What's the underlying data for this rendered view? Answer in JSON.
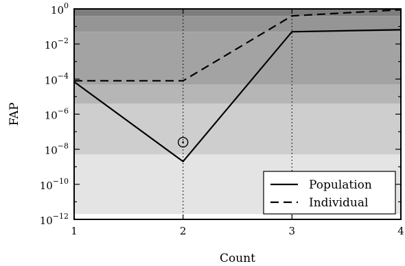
{
  "chart_data": {
    "type": "line",
    "xlabel": "Count",
    "ylabel": "FAP",
    "xlim": [
      1,
      4
    ],
    "ylim_log10": [
      -12,
      0
    ],
    "y_scale": "log",
    "x_ticks": [
      {
        "value": 1,
        "label": "1"
      },
      {
        "value": 2,
        "label": "2"
      },
      {
        "value": 3,
        "label": "3"
      },
      {
        "value": 4,
        "label": "4"
      }
    ],
    "y_ticks": [
      {
        "exp": 0,
        "base": "10",
        "sup": "0"
      },
      {
        "exp": -2,
        "base": "10",
        "sup": "−2"
      },
      {
        "exp": -4,
        "base": "10",
        "sup": "−4"
      },
      {
        "exp": -6,
        "base": "10",
        "sup": "−6"
      },
      {
        "exp": -8,
        "base": "10",
        "sup": "−8"
      },
      {
        "exp": -10,
        "base": "10",
        "sup": "−10"
      },
      {
        "exp": -12,
        "base": "10",
        "sup": "−12"
      }
    ],
    "series": [
      {
        "name": "Population",
        "line_style": "solid",
        "points": [
          {
            "x": 1,
            "y": 7e-05
          },
          {
            "x": 2,
            "y": 2e-09
          },
          {
            "x": 3,
            "y": 0.05
          },
          {
            "x": 4,
            "y": 0.065
          }
        ]
      },
      {
        "name": "Individual",
        "line_style": "dashed",
        "points": [
          {
            "x": 1,
            "y": 8e-05
          },
          {
            "x": 2,
            "y": 8e-05
          },
          {
            "x": 3,
            "y": 0.4
          },
          {
            "x": 4,
            "y": 0.9
          }
        ]
      }
    ],
    "annotations": {
      "vertical_dotted_lines_at_x": [
        2,
        3
      ],
      "circle_marker": {
        "x": 2,
        "y": 2.5e-08
      }
    },
    "background_bands_log10": [
      {
        "from": -12.0,
        "to": -11.7,
        "color": "#ffffff"
      },
      {
        "from": -11.7,
        "to": -8.3,
        "color": "#e4e4e4"
      },
      {
        "from": -8.3,
        "to": -5.4,
        "color": "#cecece"
      },
      {
        "from": -5.4,
        "to": -4.3,
        "color": "#b6b6b6"
      },
      {
        "from": -4.3,
        "to": -1.3,
        "color": "#a3a3a3"
      },
      {
        "from": -1.3,
        "to": -0.4,
        "color": "#959595"
      },
      {
        "from": -0.4,
        "to": 0.0,
        "color": "#7d7d7d"
      }
    ],
    "grid": false,
    "legend": {
      "position": "bottom-right"
    }
  }
}
